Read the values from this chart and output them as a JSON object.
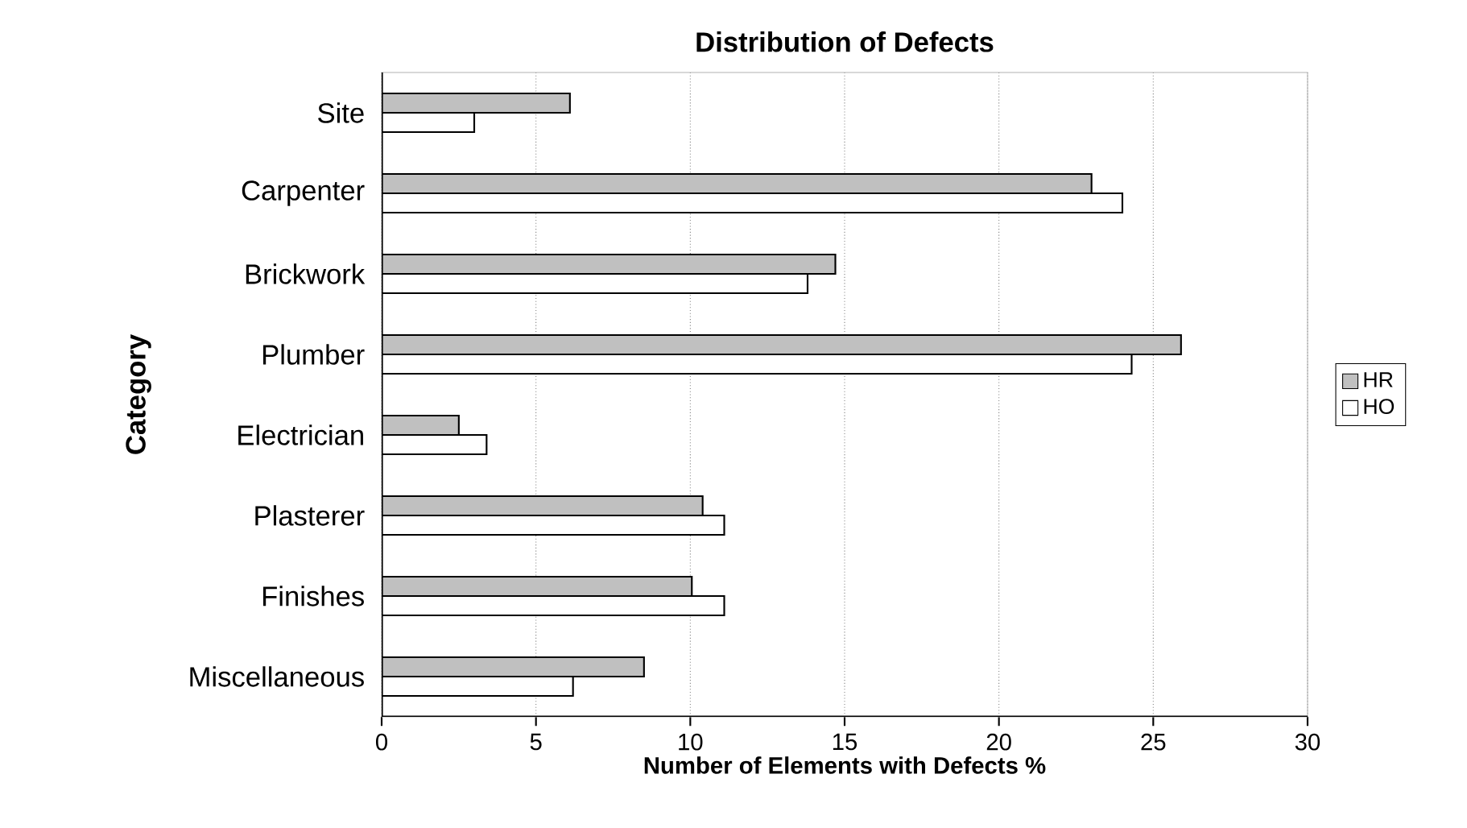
{
  "chart_data": {
    "type": "bar",
    "orientation": "horizontal",
    "title": "Distribution of Defects",
    "xlabel": "Number of Elements with Defects %",
    "ylabel": "Category",
    "categories": [
      "Site",
      "Carpenter",
      "Brickwork",
      "Plumber",
      "Electrician",
      "Plasterer",
      "Finishes",
      "Miscellaneous"
    ],
    "series": [
      {
        "name": "HR",
        "color": "#c0c0c0",
        "values": [
          6.1,
          23.0,
          14.7,
          25.9,
          2.5,
          10.4,
          10.05,
          8.5
        ]
      },
      {
        "name": "HO",
        "color": "#ffffff",
        "values": [
          3.0,
          24.0,
          13.8,
          24.3,
          3.4,
          11.1,
          11.1,
          6.2
        ]
      }
    ],
    "xlim": [
      0,
      30
    ],
    "xticks": [
      0,
      5,
      10,
      15,
      20,
      25,
      30
    ],
    "grid": "x",
    "legend": "right"
  }
}
